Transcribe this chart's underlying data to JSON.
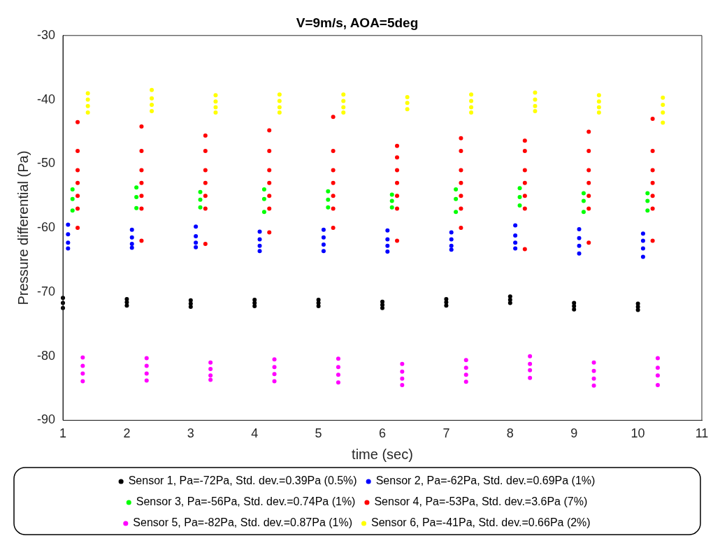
{
  "chart_data": {
    "type": "scatter",
    "title": "V=9m/s, AOA=5deg",
    "xlabel": "time (sec)",
    "ylabel": "Pressure differential (Pa)",
    "xlim": [
      1,
      11
    ],
    "xticks": [
      1,
      2,
      3,
      4,
      5,
      6,
      7,
      8,
      9,
      10,
      11
    ],
    "ylim": [
      -90,
      -30
    ],
    "yticks": [
      -90,
      -80,
      -70,
      -60,
      -50,
      -40,
      -30
    ],
    "grid": false,
    "legend": "bottom",
    "marker": "circle",
    "series": [
      {
        "name": "Sensor 1, Pa=-72Pa, Std. dev.=0.39Pa (0.5%)",
        "color": "#000000",
        "x": [
          1,
          1,
          1,
          2,
          2,
          2,
          3,
          3,
          3,
          4,
          4,
          4,
          5,
          5,
          5,
          6,
          6,
          6,
          7,
          7,
          7,
          8,
          8,
          8,
          9,
          9,
          9,
          10,
          10,
          10
        ],
        "values": [
          -70.9,
          -71.7,
          -72.5,
          -71.1,
          -71.6,
          -72.1,
          -71.3,
          -71.8,
          -72.3,
          -71.2,
          -71.7,
          -72.2,
          -71.2,
          -71.7,
          -72.2,
          -71.5,
          -72.0,
          -72.5,
          -71.1,
          -71.6,
          -72.1,
          -70.7,
          -71.2,
          -71.7,
          -71.7,
          -72.2,
          -72.7,
          -71.8,
          -72.3,
          -72.8
        ]
      },
      {
        "name": "Sensor 2, Pa=-62Pa, Std. dev.=0.69Pa (1%)",
        "color": "#0000ff",
        "x": [
          1.08,
          1.08,
          1.08,
          1.08,
          2.08,
          2.08,
          2.08,
          2.08,
          3.08,
          3.08,
          3.08,
          3.08,
          4.08,
          4.08,
          4.08,
          4.08,
          5.08,
          5.08,
          5.08,
          5.08,
          6.08,
          6.08,
          6.08,
          6.08,
          7.08,
          7.08,
          7.08,
          7.08,
          8.08,
          8.08,
          8.08,
          8.08,
          9.08,
          9.08,
          9.08,
          9.08,
          10.08,
          10.08,
          10.08,
          10.08
        ],
        "values": [
          -59.5,
          -61,
          -62.3,
          -63.2,
          -60.3,
          -61.5,
          -62.5,
          -63.1,
          -59.8,
          -61.3,
          -62.3,
          -63,
          -60.6,
          -61.8,
          -62.8,
          -63.6,
          -60.3,
          -61.5,
          -62.6,
          -63.6,
          -60.4,
          -61.8,
          -62.8,
          -63.7,
          -60.7,
          -61.8,
          -62.8,
          -63.4,
          -59.6,
          -61.2,
          -62.3,
          -63.2,
          -60.2,
          -61.6,
          -62.8,
          -64,
          -60.9,
          -62,
          -63.2,
          -64.5
        ]
      },
      {
        "name": "Sensor 3, Pa=-56Pa, Std. dev.=0.74Pa (1%)",
        "color": "#00ff00",
        "x": [
          1.15,
          1.15,
          1.15,
          2.15,
          2.15,
          2.15,
          3.15,
          3.15,
          3.15,
          4.15,
          4.15,
          4.15,
          5.15,
          5.15,
          5.15,
          6.15,
          6.15,
          6.15,
          7.15,
          7.15,
          7.15,
          8.15,
          8.15,
          8.15,
          9.15,
          9.15,
          9.15,
          10.15,
          10.15,
          10.15
        ],
        "values": [
          -54,
          -55.5,
          -57.3,
          -53.7,
          -55.2,
          -56.9,
          -54.4,
          -55.6,
          -56.8,
          -54,
          -55.5,
          -57.5,
          -54.3,
          -55.6,
          -56.8,
          -54.8,
          -55.8,
          -56.8,
          -54,
          -55.5,
          -57.5,
          -53.8,
          -55.2,
          -56.5,
          -54.6,
          -55.8,
          -57.5,
          -54.6,
          -55.8,
          -57.3
        ]
      },
      {
        "name": "Sensor 4, Pa=-53Pa, Std. dev.=3.6Pa (7%)",
        "color": "#ff0000",
        "x": [
          1.23,
          1.23,
          1.23,
          1.23,
          1.23,
          1.23,
          1.23,
          2.23,
          2.23,
          2.23,
          2.23,
          2.23,
          2.23,
          2.23,
          3.23,
          3.23,
          3.23,
          3.23,
          3.23,
          3.23,
          3.23,
          4.23,
          4.23,
          4.23,
          4.23,
          4.23,
          4.23,
          4.23,
          5.23,
          5.23,
          5.23,
          5.23,
          5.23,
          5.23,
          5.23,
          6.23,
          6.23,
          6.23,
          6.23,
          6.23,
          6.23,
          6.23,
          7.23,
          7.23,
          7.23,
          7.23,
          7.23,
          7.23,
          7.23,
          8.23,
          8.23,
          8.23,
          8.23,
          8.23,
          8.23,
          8.23,
          9.23,
          9.23,
          9.23,
          9.23,
          9.23,
          9.23,
          9.23,
          10.23,
          10.23,
          10.23,
          10.23,
          10.23,
          10.23,
          10.23
        ],
        "values": [
          -43.5,
          -48,
          -51,
          -53,
          -55,
          -57,
          -60,
          -44.2,
          -48,
          -51,
          -53,
          -55,
          -57,
          -62,
          -45.6,
          -48,
          -51,
          -53,
          -55,
          -57,
          -62.5,
          -44.8,
          -48,
          -51,
          -53,
          -55,
          -57,
          -60.7,
          -42.7,
          -48,
          -51,
          -53,
          -55,
          -57,
          -60,
          -47.2,
          -49,
          -51,
          -53,
          -55,
          -57,
          -62,
          -46,
          -48,
          -51,
          -53,
          -55,
          -57,
          -60,
          -46.4,
          -48,
          -51,
          -53,
          -55,
          -57,
          -63.3,
          -45,
          -48,
          -51,
          -53,
          -55,
          -57,
          -62.3,
          -43,
          -48,
          -51,
          -53,
          -55,
          -57,
          -62
        ]
      },
      {
        "name": "Sensor 5, Pa=-82Pa, Std. dev.=0.87Pa (1%)",
        "color": "#ff00ff",
        "x": [
          1.31,
          1.31,
          1.31,
          1.31,
          2.31,
          2.31,
          2.31,
          2.31,
          3.31,
          3.31,
          3.31,
          3.31,
          4.31,
          4.31,
          4.31,
          4.31,
          5.31,
          5.31,
          5.31,
          5.31,
          6.31,
          6.31,
          6.31,
          6.31,
          7.31,
          7.31,
          7.31,
          7.31,
          8.31,
          8.31,
          8.31,
          8.31,
          9.31,
          9.31,
          9.31,
          9.31,
          10.31,
          10.31,
          10.31,
          10.31
        ],
        "values": [
          -80.2,
          -81.5,
          -82.7,
          -83.9,
          -80.3,
          -81.5,
          -82.7,
          -83.8,
          -81,
          -82,
          -83,
          -83.7,
          -80.5,
          -81.7,
          -82.8,
          -83.9,
          -80.4,
          -81.7,
          -82.9,
          -84.1,
          -81.2,
          -82.4,
          -83.5,
          -84.5,
          -80.6,
          -81.8,
          -82.9,
          -84,
          -80,
          -81.2,
          -82.2,
          -83.4,
          -81,
          -82.3,
          -83.5,
          -84.6,
          -80.3,
          -81.8,
          -83,
          -84.5
        ]
      },
      {
        "name": "Sensor 6, Pa=-41Pa, Std. dev.=0.66Pa (2%)",
        "color": "#ffff00",
        "x": [
          1.39,
          1.39,
          1.39,
          1.39,
          2.39,
          2.39,
          2.39,
          2.39,
          3.39,
          3.39,
          3.39,
          3.39,
          4.39,
          4.39,
          4.39,
          4.39,
          5.39,
          5.39,
          5.39,
          5.39,
          6.39,
          6.39,
          6.39,
          7.39,
          7.39,
          7.39,
          7.39,
          8.39,
          8.39,
          8.39,
          8.39,
          9.39,
          9.39,
          9.39,
          9.39,
          10.39,
          10.39,
          10.39,
          10.39
        ],
        "values": [
          -39,
          -40,
          -41,
          -42,
          -38.5,
          -39.8,
          -40.8,
          -41.8,
          -39.3,
          -40.3,
          -41.2,
          -42,
          -39.2,
          -40.2,
          -41.2,
          -42,
          -39.2,
          -40.2,
          -41.2,
          -42,
          -39.6,
          -40.5,
          -41.5,
          -39.2,
          -40.2,
          -41.2,
          -42,
          -38.9,
          -40,
          -41,
          -41.8,
          -39.3,
          -40.3,
          -41.2,
          -42,
          -39.7,
          -40.8,
          -42,
          -43.6
        ]
      }
    ]
  }
}
